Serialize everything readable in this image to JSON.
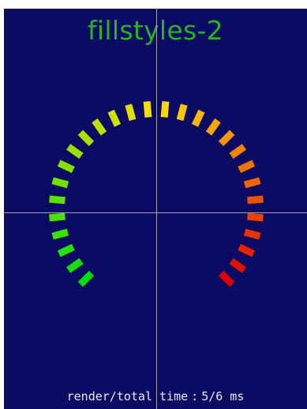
{
  "window": {
    "title": "fillstyles-2"
  },
  "status": {
    "label": "render/total time",
    "separator": ":",
    "value": "5/6 ms"
  },
  "colors": {
    "background": "#0b0b63",
    "title": "#23b523",
    "crosshair": "#a6a6b2",
    "status_text": "#e8e8ee",
    "gradient_start": "#00e000",
    "gradient_mid": "#ffe000",
    "gradient_end": "#e00000"
  },
  "gauge": {
    "segment_count": 28,
    "sweep_degrees": 270,
    "start_angle_degrees": 225,
    "direction": "clockwise",
    "fill_style": "green-yellow-red gradient"
  }
}
